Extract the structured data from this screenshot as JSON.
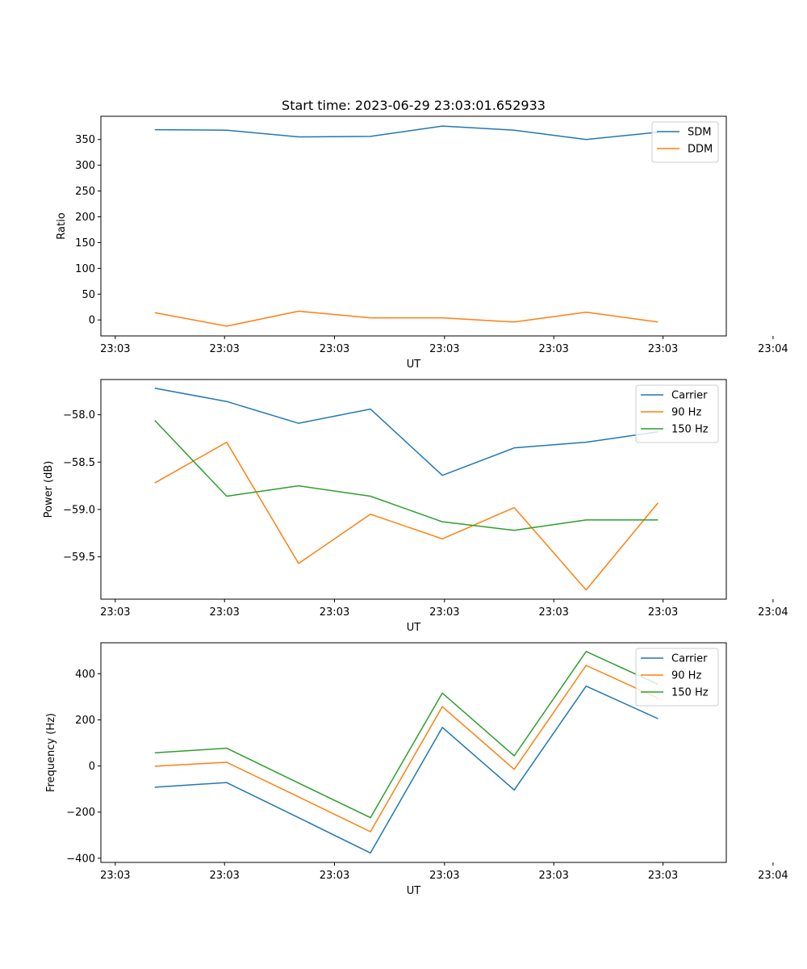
{
  "figure": {
    "title": "Start time: 2023-06-29 23:03:01.652933"
  },
  "chart_data": [
    {
      "type": "line",
      "ylabel": "Ratio",
      "xlabel": "UT",
      "x": [
        1,
        2,
        3,
        4,
        5,
        6,
        7,
        8
      ],
      "xlim": [
        0.25,
        8.95
      ],
      "xticks": [
        0.45,
        1.97,
        3.5,
        5.03,
        6.55,
        8.07,
        9.6
      ],
      "xtick_labels": [
        "23:03",
        "23:03",
        "23:03",
        "23:03",
        "23:03",
        "23:03",
        "23:04"
      ],
      "ylim": [
        -31,
        395
      ],
      "yticks": [
        0,
        50,
        100,
        150,
        200,
        250,
        300,
        350
      ],
      "ytick_labels": [
        "0",
        "50",
        "100",
        "150",
        "200",
        "250",
        "300",
        "350"
      ],
      "legend": "upper right",
      "series": [
        {
          "name": "SDM",
          "color": "#1f77b4",
          "values": [
            369,
            368,
            355,
            356,
            376,
            368,
            350,
            364
          ]
        },
        {
          "name": "DDM",
          "color": "#ff7f0e",
          "values": [
            14,
            -12,
            17,
            4,
            4,
            -4,
            15,
            -4
          ]
        }
      ]
    },
    {
      "type": "line",
      "ylabel": "Power (dB)",
      "xlabel": "UT",
      "x": [
        1,
        2,
        3,
        4,
        5,
        6,
        7,
        8
      ],
      "xlim": [
        0.25,
        8.95
      ],
      "xticks": [
        0.45,
        1.97,
        3.5,
        5.03,
        6.55,
        8.07,
        9.6
      ],
      "xtick_labels": [
        "23:03",
        "23:03",
        "23:03",
        "23:03",
        "23:03",
        "23:03",
        "23:04"
      ],
      "ylim": [
        -59.947,
        -57.628
      ],
      "yticks": [
        -59.5,
        -59.0,
        -58.5,
        -58.0
      ],
      "ytick_labels": [
        "−59.5",
        "−59.0",
        "−58.5",
        "−58.0"
      ],
      "legend": "upper right",
      "series": [
        {
          "name": "Carrier",
          "color": "#1f77b4",
          "values": [
            -57.72,
            -57.86,
            -58.09,
            -57.94,
            -58.64,
            -58.35,
            -58.29,
            -58.18
          ]
        },
        {
          "name": "90 Hz",
          "color": "#ff7f0e",
          "values": [
            -58.72,
            -58.29,
            -59.57,
            -59.05,
            -59.31,
            -58.98,
            -59.85,
            -58.93
          ]
        },
        {
          "name": "150 Hz",
          "color": "#2ca02c",
          "values": [
            -58.06,
            -58.86,
            -58.75,
            -58.86,
            -59.13,
            -59.22,
            -59.11,
            -59.11
          ]
        }
      ]
    },
    {
      "type": "line",
      "ylabel": "Frequency (Hz)",
      "xlabel": "UT",
      "x": [
        1,
        2,
        3,
        4,
        5,
        6,
        7,
        8
      ],
      "xlim": [
        0.25,
        8.95
      ],
      "xticks": [
        0.45,
        1.97,
        3.5,
        5.03,
        6.55,
        8.07,
        9.6
      ],
      "xtick_labels": [
        "23:03",
        "23:03",
        "23:03",
        "23:03",
        "23:03",
        "23:03",
        "23:04"
      ],
      "ylim": [
        -418,
        534
      ],
      "yticks": [
        -400,
        -200,
        0,
        200,
        400
      ],
      "ytick_labels": [
        "−400",
        "−200",
        "0",
        "200",
        "400"
      ],
      "legend": "upper right",
      "series": [
        {
          "name": "Carrier",
          "color": "#1f77b4",
          "values": [
            -92,
            -72,
            -224,
            -377,
            167,
            -104,
            346,
            205
          ]
        },
        {
          "name": "90 Hz",
          "color": "#ff7f0e",
          "values": [
            -1,
            16,
            -134,
            -285,
            257,
            -15,
            436,
            294
          ]
        },
        {
          "name": "150 Hz",
          "color": "#2ca02c",
          "values": [
            57,
            77,
            -74,
            -224,
            316,
            44,
            496,
            354
          ]
        }
      ]
    }
  ]
}
